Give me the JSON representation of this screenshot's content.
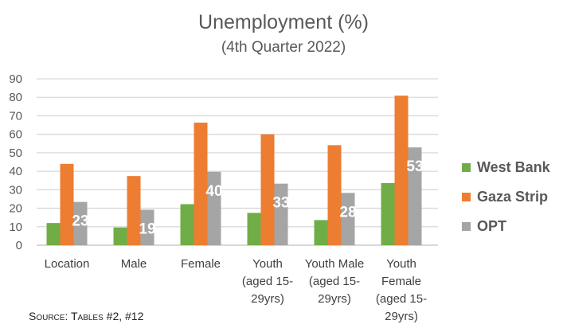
{
  "chart_data": {
    "type": "bar",
    "title": "Unemployment (%)",
    "subtitle": "(4th Quarter 2022)",
    "categories": [
      [
        "Location"
      ],
      [
        "Male"
      ],
      [
        "Female"
      ],
      [
        "Youth",
        "(aged 15-",
        "29yrs)"
      ],
      [
        "Youth Male",
        "(aged 15-",
        "29yrs)"
      ],
      [
        "Youth",
        "Female",
        "(aged 15-",
        "29yrs)"
      ]
    ],
    "series": [
      {
        "name": "West Bank",
        "color": "#70ad47",
        "values": [
          12,
          9.6,
          22.2,
          17.5,
          13.6,
          33.6
        ]
      },
      {
        "name": "Gaza Strip",
        "color": "#ed7d31",
        "values": [
          44,
          37.4,
          66.3,
          60,
          54.1,
          80.9
        ]
      },
      {
        "name": "OPT",
        "color": "#a5a5a5",
        "values": [
          23.4,
          19.2,
          39.7,
          33.3,
          28.3,
          52.9
        ],
        "data_labels": [
          "23",
          "19",
          "40",
          "33",
          "28",
          "53"
        ]
      }
    ],
    "ylim": [
      0,
      90
    ],
    "yticks": [
      "0",
      "10",
      "20",
      "30",
      "40",
      "50",
      "60",
      "70",
      "80",
      "90"
    ],
    "grid": true,
    "legend_position": "right",
    "source": "Source: Tables #2, #12"
  }
}
